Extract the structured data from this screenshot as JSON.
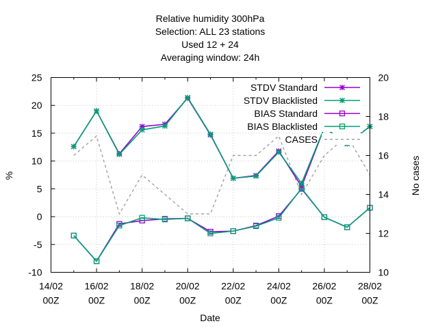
{
  "chart_data": {
    "type": "line",
    "title_lines": [
      "Relative humidity 300hPa",
      "Selection: ALL      23 stations",
      "Used  12  + 24",
      "Averaging window: 24h"
    ],
    "xlabel": "Date",
    "ylabel": "%",
    "y2label": "No cases",
    "xlim": [
      14,
      28
    ],
    "ylim": [
      -10,
      25
    ],
    "y2lim": [
      10,
      20
    ],
    "x_ticks": [
      {
        "x": 14,
        "line1": "14/02",
        "line2": "00Z"
      },
      {
        "x": 16,
        "line1": "16/02",
        "line2": "00Z"
      },
      {
        "x": 18,
        "line1": "18/02",
        "line2": "00Z"
      },
      {
        "x": 20,
        "line1": "20/02",
        "line2": "00Z"
      },
      {
        "x": 22,
        "line1": "22/02",
        "line2": "00Z"
      },
      {
        "x": 24,
        "line1": "24/02",
        "line2": "00Z"
      },
      {
        "x": 26,
        "line1": "26/02",
        "line2": "00Z"
      },
      {
        "x": 28,
        "line1": "28/02",
        "line2": "00Z"
      }
    ],
    "y_ticks": [
      "-10",
      "-5",
      "0",
      "5",
      "10",
      "15",
      "20",
      "25"
    ],
    "y2_ticks": [
      "10",
      "12",
      "14",
      "16",
      "18",
      "20"
    ],
    "grid": true,
    "legend_position": "top-right",
    "series": [
      {
        "name": "STDV Standard",
        "axis": "y",
        "color": "#9400d3",
        "marker": "star",
        "dash": "none",
        "x": [
          15,
          16,
          17,
          18,
          19,
          20,
          21,
          22,
          23,
          24,
          25,
          26,
          27,
          28
        ],
        "values": [
          12.6,
          19.0,
          11.3,
          16.2,
          16.6,
          21.3,
          14.7,
          6.9,
          7.4,
          11.8,
          5.4,
          16.0,
          13.1,
          16.2
        ]
      },
      {
        "name": "STDV Blacklisted",
        "axis": "y",
        "color": "#009e73",
        "marker": "star",
        "dash": "none",
        "x": [
          15,
          16,
          17,
          18,
          19,
          20,
          21,
          22,
          23,
          24,
          25,
          26,
          27,
          28
        ],
        "values": [
          12.6,
          19.0,
          11.2,
          15.6,
          16.3,
          21.4,
          14.8,
          6.9,
          7.3,
          11.6,
          6.0,
          16.0,
          13.1,
          16.2
        ]
      },
      {
        "name": "BIAS Standard",
        "axis": "y",
        "color": "#9400d3",
        "marker": "square",
        "dash": "none",
        "x": [
          15,
          16,
          17,
          18,
          19,
          20,
          21,
          22,
          23,
          24,
          25,
          26,
          27,
          28
        ],
        "values": [
          -3.4,
          -8.0,
          -1.3,
          -0.7,
          -0.4,
          -0.3,
          -2.7,
          -2.6,
          -1.6,
          0.1,
          5.0,
          -0.1,
          -1.9,
          1.6
        ]
      },
      {
        "name": "BIAS Blacklisted",
        "axis": "y",
        "color": "#009e73",
        "marker": "square",
        "dash": "none",
        "x": [
          15,
          16,
          17,
          18,
          19,
          20,
          21,
          22,
          23,
          24,
          25,
          26,
          27,
          28
        ],
        "values": [
          -3.4,
          -8.0,
          -1.6,
          -0.2,
          -0.5,
          -0.3,
          -3.0,
          -2.6,
          -1.7,
          -0.2,
          5.1,
          -0.1,
          -1.9,
          1.6
        ]
      },
      {
        "name": "CASES",
        "axis": "y2",
        "color": "#a0a0a0",
        "marker": "none",
        "dash": "4,4",
        "x": [
          15,
          15,
          16,
          16,
          17,
          17,
          18,
          18,
          19,
          19,
          20,
          20,
          21,
          21,
          22,
          22,
          23,
          23,
          24,
          24,
          25,
          25,
          26,
          26,
          27,
          27,
          28,
          28
        ],
        "values": [
          16,
          16,
          17,
          17,
          13,
          13,
          15,
          15,
          14,
          14,
          13,
          13,
          13,
          13,
          16,
          16,
          16,
          16,
          17,
          17,
          14,
          14,
          16,
          16,
          17,
          17,
          15,
          15
        ]
      }
    ]
  }
}
